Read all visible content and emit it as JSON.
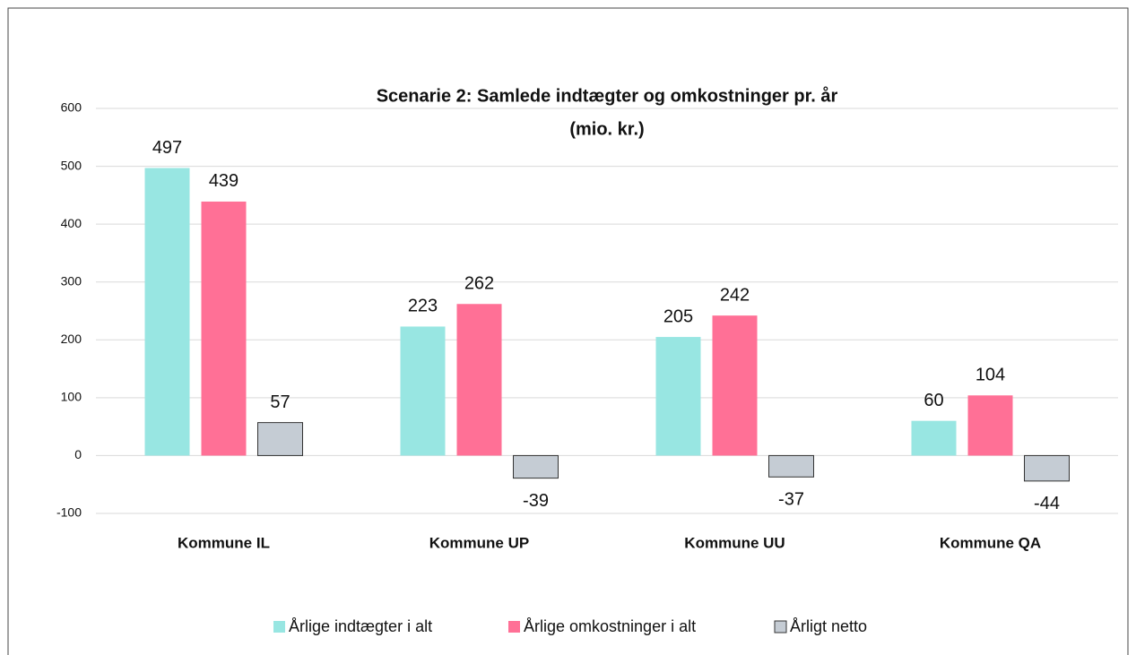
{
  "chart_data": {
    "type": "bar",
    "title": [
      "Scenarie 2: Samlede indtægter og omkostninger pr. år",
      "(mio. kr.)"
    ],
    "categories": [
      "Kommune IL",
      "Kommune UP",
      "Kommune UU",
      "Kommune QA"
    ],
    "series": [
      {
        "name": "Årlige indtægter i alt",
        "color": "#98e6e2",
        "values": [
          497,
          223,
          205,
          60
        ]
      },
      {
        "name": "Årlige omkostninger i alt",
        "color": "#ff7096",
        "values": [
          439,
          262,
          242,
          104
        ]
      },
      {
        "name": "Årligt netto",
        "color": "#c5ccd4",
        "values": [
          57,
          -39,
          -37,
          -44
        ]
      }
    ],
    "ylim": [
      -100,
      600
    ],
    "yticks": [
      -100,
      0,
      100,
      200,
      300,
      400,
      500,
      600
    ],
    "grid": true,
    "legend": "bottom"
  }
}
